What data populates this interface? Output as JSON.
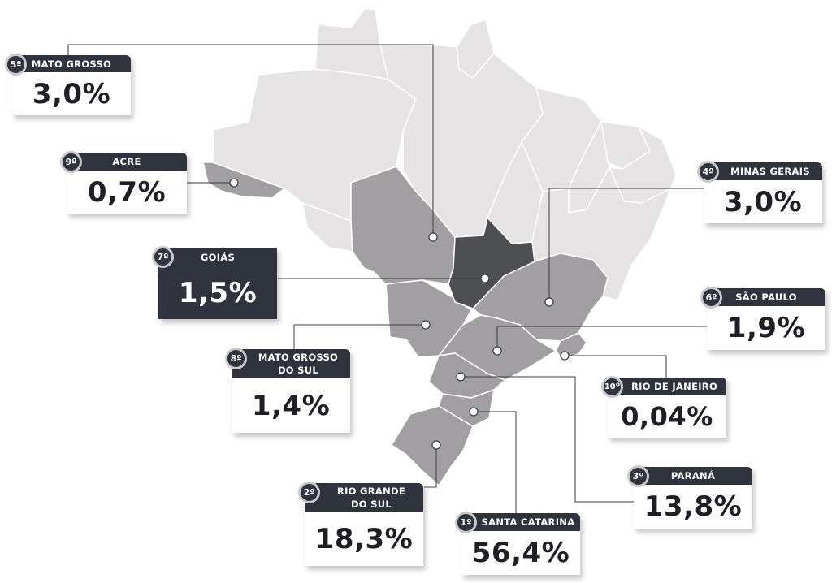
{
  "colors": {
    "state_light": "#e6e3e5",
    "state_highlight": "#a29fa2",
    "state_dark": "#4d4f52",
    "card_header": "#2f333d",
    "state_border": "#ffffff"
  },
  "regions": [
    {
      "rank": "5º",
      "name": "MATO GROSSO",
      "value": "3,0%",
      "shade": "highlight"
    },
    {
      "rank": "9º",
      "name": "ACRE",
      "value": "0,7%",
      "shade": "highlight"
    },
    {
      "rank": "7º",
      "name": "GOIÁS",
      "value": "1,5%",
      "shade": "dark"
    },
    {
      "rank": "8º",
      "name": "MATO GROSSO DO SUL",
      "value": "1,4%",
      "shade": "highlight"
    },
    {
      "rank": "4º",
      "name": "MINAS GERAIS",
      "value": "3,0%",
      "shade": "highlight"
    },
    {
      "rank": "6º",
      "name": "SÃO PAULO",
      "value": "1,9%",
      "shade": "highlight"
    },
    {
      "rank": "10º",
      "name": "RIO DE JANEIRO",
      "value": "0,04%",
      "shade": "highlight"
    },
    {
      "rank": "3º",
      "name": "PARANÁ",
      "value": "13,8%",
      "shade": "highlight"
    },
    {
      "rank": "2º",
      "name": "RIO GRANDE DO SUL",
      "value": "18,3%",
      "shade": "highlight"
    },
    {
      "rank": "1º",
      "name": "SANTA CATARINA",
      "value": "56,4%",
      "shade": "highlight"
    }
  ]
}
